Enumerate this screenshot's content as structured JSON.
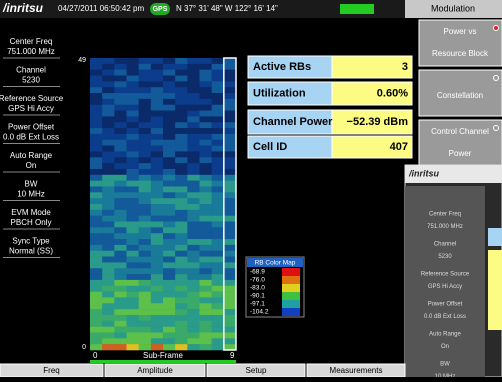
{
  "header": {
    "logo": "/inritsu",
    "datetime": "04/27/2011 06:50:42 pm",
    "gps": "GPS",
    "position": "N 37° 31' 48\" W 122° 16' 14\"",
    "menu_title": "Modulation"
  },
  "left_panel": [
    {
      "label": "Center Freq",
      "value": "751.000 MHz"
    },
    {
      "label": "Channel",
      "value": "5230"
    },
    {
      "label": "Reference Source",
      "value": "GPS Hi Accy"
    },
    {
      "label": "Power Offset",
      "value": "0.0 dB Ext Loss"
    },
    {
      "label": "Auto Range",
      "value": "On"
    },
    {
      "label": "BW",
      "value": "10 MHz"
    },
    {
      "label": "EVM Mode",
      "value": "PBCH Only"
    },
    {
      "label": "Sync Type",
      "value": "Normal (SS)"
    }
  ],
  "heatmap": {
    "y_top": "49",
    "y_bottom": "0",
    "x_left": "0",
    "x_title": "Sub-Frame",
    "x_right": "9"
  },
  "table": {
    "rows": [
      [
        "Active RBs",
        "3"
      ],
      [
        "Utilization",
        "0.60%"
      ],
      [
        "Channel Power",
        "−52.39 dBm"
      ],
      [
        "Cell ID",
        "407"
      ]
    ]
  },
  "color_map": {
    "title": "RB Color Map",
    "labels": [
      "-68.9",
      "-76.0",
      "-83.0",
      "-90.1",
      "-97.1",
      "-104.2"
    ]
  },
  "right_menu": [
    [
      "Power vs",
      "Resource Block"
    ],
    [
      "Constellation"
    ],
    [
      "Control Channel",
      "Power"
    ]
  ],
  "inset": {
    "logo": "/inritsu",
    "labels": [
      "Center Freq",
      "751.000 MHz",
      "Channel",
      "5230",
      "Reference Source",
      "GPS Hi Accy",
      "Power Offset",
      "0.0 dB Ext Loss",
      "Auto Range",
      "On",
      "BW",
      "10 MHz"
    ]
  },
  "bottom_menu": [
    "Freq",
    "Amplitude",
    "Setup",
    "Measurements"
  ]
}
